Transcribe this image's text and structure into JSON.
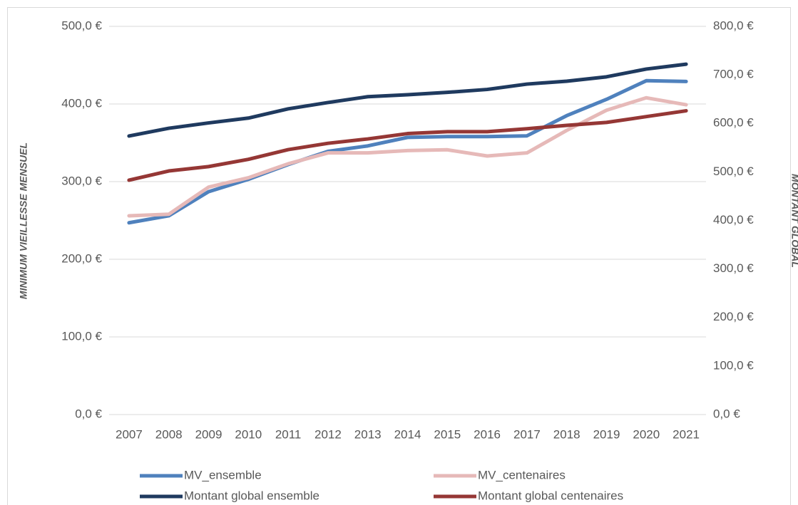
{
  "chart_data": {
    "type": "line",
    "y_label": "MINIMUM VIEILLESSE MENSUEL",
    "y2_label": "MONTANT GLOBAL",
    "categories": [
      "2007",
      "2008",
      "2009",
      "2010",
      "2011",
      "2012",
      "2013",
      "2014",
      "2015",
      "2016",
      "2017",
      "2018",
      "2019",
      "2020",
      "2021"
    ],
    "series": [
      {
        "name": "MV_ensemble",
        "color": "#4f81bd",
        "values": [
          247,
          256,
          287,
          303,
          322,
          339,
          346,
          357,
          358,
          358,
          359,
          385,
          406,
          430,
          429
        ]
      },
      {
        "name": "MV_centenaires",
        "color": "#e6b9b8",
        "values": [
          256,
          258,
          293,
          305,
          323,
          337,
          337,
          340,
          341,
          333,
          337,
          366,
          392,
          408,
          399
        ]
      },
      {
        "name": "Montant global ensemble",
        "color": "#1f3a5f",
        "axis": "y2",
        "values": [
          574,
          590,
          601,
          611,
          630,
          643,
          655,
          659,
          664,
          670,
          681,
          687,
          696,
          712,
          722
        ]
      },
      {
        "name": "Montant global centenaires",
        "color": "#953735",
        "axis": "y2",
        "values": [
          483,
          502,
          511,
          526,
          546,
          559,
          568,
          579,
          583,
          583,
          589,
          596,
          602,
          614,
          626
        ]
      }
    ],
    "ylim": [
      0,
      500
    ],
    "yticks": [
      {
        "value": 0,
        "label": "0,0 €"
      },
      {
        "value": 100,
        "label": "100,0 €"
      },
      {
        "value": 200,
        "label": "200,0 €"
      },
      {
        "value": 300,
        "label": "300,0 €"
      },
      {
        "value": 400,
        "label": "400,0 €"
      },
      {
        "value": 500,
        "label": "500,0 €"
      }
    ],
    "y2lim": [
      0,
      800
    ],
    "y2ticks": [
      {
        "value": 0,
        "label": "0,0 €"
      },
      {
        "value": 100,
        "label": "100,0 €"
      },
      {
        "value": 200,
        "label": "200,0 €"
      },
      {
        "value": 300,
        "label": "300,0 €"
      },
      {
        "value": 400,
        "label": "400,0 €"
      },
      {
        "value": 500,
        "label": "500,0 €"
      },
      {
        "value": 600,
        "label": "600,0 €"
      },
      {
        "value": 700,
        "label": "700,0 €"
      },
      {
        "value": 800,
        "label": "800,0 €"
      }
    ],
    "grid": true,
    "legend": "bottom"
  }
}
